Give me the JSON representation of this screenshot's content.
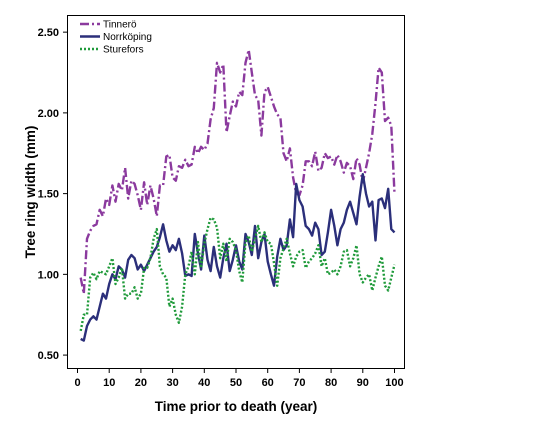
{
  "chart_data": {
    "type": "line",
    "title": "",
    "xlabel": "Time prior to death (year)",
    "ylabel": "Tree ring width (mm)",
    "xlim": [
      -3,
      103
    ],
    "ylim": [
      0.42,
      2.6
    ],
    "xticks": [
      0,
      10,
      20,
      30,
      40,
      50,
      60,
      70,
      80,
      90,
      100
    ],
    "yticks": [
      0.5,
      1.0,
      1.5,
      2.0,
      2.5
    ],
    "xtick_labels": [
      "0",
      "10",
      "20",
      "30",
      "40",
      "50",
      "60",
      "70",
      "80",
      "90",
      "100"
    ],
    "ytick_labels": [
      "0.50",
      "1.00",
      "1.50",
      "2.00",
      "2.50"
    ],
    "grid": false,
    "legend_position": "top-left",
    "series": [
      {
        "name": "Tinnerö",
        "color": "#8b3a9e",
        "line_style": "dash-dot",
        "x": [
          1,
          2,
          3,
          4,
          5,
          6,
          7,
          8,
          9,
          10,
          11,
          12,
          13,
          14,
          15,
          16,
          17,
          18,
          19,
          20,
          21,
          22,
          23,
          24,
          25,
          26,
          27,
          28,
          29,
          30,
          31,
          32,
          33,
          34,
          35,
          36,
          37,
          38,
          39,
          40,
          41,
          42,
          43,
          44,
          45,
          46,
          47,
          48,
          49,
          50,
          51,
          52,
          53,
          54,
          55,
          56,
          57,
          58,
          59,
          60,
          61,
          62,
          63,
          64,
          65,
          66,
          67,
          68,
          69,
          70,
          71,
          72,
          73,
          74,
          75,
          76,
          77,
          78,
          79,
          80,
          81,
          82,
          83,
          84,
          85,
          86,
          87,
          88,
          89,
          90,
          91,
          92,
          93,
          94,
          95,
          96,
          97,
          98,
          99,
          100
        ],
        "values": [
          0.98,
          0.88,
          1.22,
          1.27,
          1.3,
          1.31,
          1.4,
          1.36,
          1.47,
          1.43,
          1.55,
          1.45,
          1.56,
          1.52,
          1.66,
          1.47,
          1.58,
          1.56,
          1.49,
          1.4,
          1.57,
          1.43,
          1.55,
          1.47,
          1.36,
          1.55,
          1.55,
          1.73,
          1.74,
          1.6,
          1.58,
          1.67,
          1.66,
          1.71,
          1.67,
          1.68,
          1.79,
          1.75,
          1.79,
          1.77,
          1.81,
          1.96,
          2.03,
          2.31,
          2.25,
          2.3,
          1.88,
          1.98,
          2.07,
          2.04,
          2.13,
          2.11,
          2.31,
          2.39,
          2.25,
          2.11,
          2.08,
          1.86,
          2.13,
          2.16,
          2.1,
          2.04,
          1.99,
          1.97,
          1.75,
          1.7,
          1.78,
          1.6,
          1.5,
          1.49,
          1.55,
          1.7,
          1.7,
          1.67,
          1.76,
          1.64,
          1.66,
          1.75,
          1.72,
          1.73,
          1.68,
          1.74,
          1.7,
          1.63,
          1.69,
          1.67,
          1.59,
          1.72,
          1.68,
          1.57,
          1.66,
          1.75,
          1.87,
          2.06,
          2.28,
          2.25,
          1.95,
          1.97,
          1.92,
          1.5
        ]
      },
      {
        "name": "Norrköping",
        "color": "#2b2f7a",
        "line_style": "solid",
        "x": [
          1,
          2,
          3,
          4,
          5,
          6,
          7,
          8,
          9,
          10,
          11,
          12,
          13,
          14,
          15,
          16,
          17,
          18,
          19,
          20,
          21,
          22,
          23,
          24,
          25,
          26,
          27,
          28,
          29,
          30,
          31,
          32,
          33,
          34,
          35,
          36,
          37,
          38,
          39,
          40,
          41,
          42,
          43,
          44,
          45,
          46,
          47,
          48,
          49,
          50,
          51,
          52,
          53,
          54,
          55,
          56,
          57,
          58,
          59,
          60,
          61,
          62,
          63,
          64,
          65,
          66,
          67,
          68,
          69,
          70,
          71,
          72,
          73,
          74,
          75,
          76,
          77,
          78,
          79,
          80,
          81,
          82,
          83,
          84,
          85,
          86,
          87,
          88,
          89,
          90,
          91,
          92,
          93,
          94,
          95,
          96,
          97,
          98,
          99,
          100
        ],
        "values": [
          0.6,
          0.59,
          0.68,
          0.72,
          0.74,
          0.72,
          0.8,
          0.88,
          0.85,
          0.94,
          1.0,
          0.97,
          1.05,
          1.03,
          0.98,
          1.09,
          1.12,
          1.1,
          1.03,
          1.06,
          1.02,
          1.06,
          1.1,
          1.14,
          1.17,
          1.23,
          1.31,
          1.21,
          1.14,
          1.18,
          1.15,
          1.22,
          1.13,
          0.99,
          1.0,
          0.99,
          1.25,
          1.13,
          1.03,
          1.24,
          1.09,
          1.02,
          1.17,
          1.05,
          0.98,
          1.1,
          1.19,
          1.02,
          1.09,
          1.18,
          1.08,
          1.03,
          1.25,
          1.2,
          1.12,
          1.3,
          1.1,
          1.2,
          1.25,
          1.08,
          1.0,
          0.93,
          1.11,
          1.22,
          1.15,
          1.18,
          1.34,
          1.23,
          1.56,
          1.46,
          1.42,
          1.3,
          1.28,
          1.24,
          1.32,
          1.28,
          1.12,
          1.14,
          1.26,
          1.4,
          1.3,
          1.18,
          1.28,
          1.32,
          1.4,
          1.45,
          1.38,
          1.31,
          1.48,
          1.62,
          1.5,
          1.42,
          1.45,
          1.21,
          1.46,
          1.47,
          1.41,
          1.53,
          1.28,
          1.26
        ]
      },
      {
        "name": "Sturefors",
        "color": "#1f9a3a",
        "line_style": "dotted",
        "x": [
          1,
          2,
          3,
          4,
          5,
          6,
          7,
          8,
          9,
          10,
          11,
          12,
          13,
          14,
          15,
          16,
          17,
          18,
          19,
          20,
          21,
          22,
          23,
          24,
          25,
          26,
          27,
          28,
          29,
          30,
          31,
          32,
          33,
          34,
          35,
          36,
          37,
          38,
          39,
          40,
          41,
          42,
          43,
          44,
          45,
          46,
          47,
          48,
          49,
          50,
          51,
          52,
          53,
          54,
          55,
          56,
          57,
          58,
          59,
          60,
          61,
          62,
          63,
          64,
          65,
          66,
          67,
          68,
          69,
          70,
          71,
          72,
          73,
          74,
          75,
          76,
          77,
          78,
          79,
          80,
          81,
          82,
          83,
          84,
          85,
          86,
          87,
          88,
          89,
          90,
          91,
          92,
          93,
          94,
          95,
          96,
          97,
          98,
          99,
          100
        ],
        "values": [
          0.65,
          0.75,
          0.75,
          0.98,
          1.01,
          0.97,
          1.02,
          1.01,
          1.0,
          1.05,
          1.1,
          0.94,
          0.98,
          1.04,
          0.85,
          0.88,
          0.88,
          0.92,
          0.85,
          0.88,
          1.04,
          1.04,
          1.1,
          1.22,
          1.28,
          1.05,
          1.0,
          0.98,
          0.8,
          0.85,
          0.75,
          0.7,
          0.8,
          1.0,
          1.05,
          1.14,
          1.0,
          1.2,
          1.04,
          1.19,
          1.28,
          1.35,
          1.34,
          1.29,
          1.1,
          1.19,
          1.08,
          1.22,
          1.2,
          1.15,
          1.02,
          0.95,
          1.2,
          1.24,
          1.14,
          1.22,
          1.3,
          1.2,
          1.26,
          1.2,
          1.19,
          1.07,
          0.93,
          1.1,
          1.16,
          1.22,
          1.13,
          1.05,
          1.11,
          1.14,
          1.15,
          1.04,
          1.08,
          1.1,
          1.13,
          1.18,
          1.05,
          1.1,
          1.0,
          1.01,
          1.03,
          1.0,
          1.05,
          1.14,
          1.15,
          1.05,
          1.1,
          1.18,
          1.0,
          0.95,
          0.98,
          1.0,
          0.9,
          0.98,
          1.05,
          1.11,
          0.93,
          0.9,
          0.98,
          1.06
        ]
      }
    ]
  }
}
